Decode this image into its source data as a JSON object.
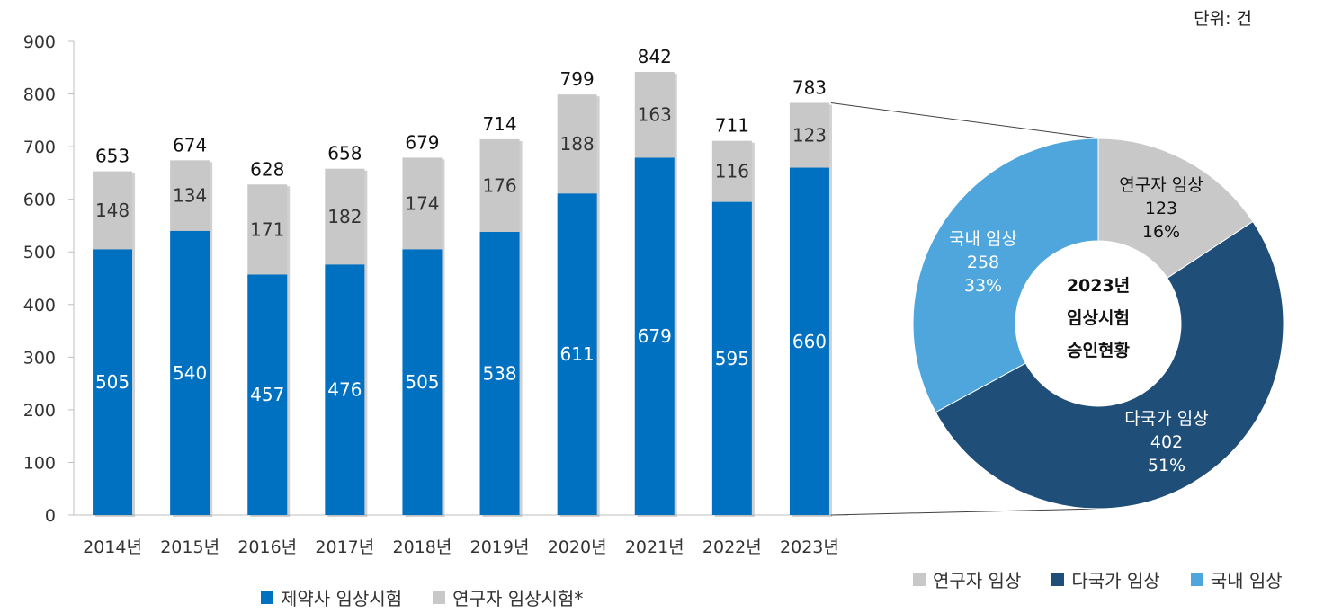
{
  "unit_label": "단위: 건",
  "bar_legend": [
    {
      "name": "제약사 임상시험",
      "color": "#0070c0"
    },
    {
      "name": "연구자 임상시험*",
      "color": "#c8c8c8"
    }
  ],
  "pie_legend": [
    {
      "name": "연구자 임상",
      "color": "#c8c8c8"
    },
    {
      "name": "다국가 임상",
      "color": "#1f4e79"
    },
    {
      "name": "국내 임상",
      "color": "#4ea6dc"
    }
  ],
  "pie_center": [
    "2023년",
    "임상시험",
    "승인현황"
  ],
  "chart_data": [
    {
      "type": "bar",
      "stacked": true,
      "categories": [
        "2014년",
        "2015년",
        "2016년",
        "2017년",
        "2018년",
        "2019년",
        "2020년",
        "2021년",
        "2022년",
        "2023년"
      ],
      "series": [
        {
          "name": "제약사 임상시험",
          "values": [
            505,
            540,
            457,
            476,
            505,
            538,
            611,
            679,
            595,
            660
          ],
          "color": "#0070c0"
        },
        {
          "name": "연구자 임상시험*",
          "values": [
            148,
            134,
            171,
            182,
            174,
            176,
            188,
            163,
            116,
            123
          ],
          "color": "#c8c8c8"
        }
      ],
      "totals": [
        653,
        674,
        628,
        658,
        679,
        714,
        799,
        842,
        711,
        783
      ],
      "ylim": [
        0,
        900
      ],
      "yticks": [
        0,
        100,
        200,
        300,
        400,
        500,
        600,
        700,
        800,
        900
      ],
      "legend_position": "bottom"
    },
    {
      "type": "pie",
      "donut": true,
      "slices": [
        {
          "label": "연구자 임상",
          "value": 123,
          "percent": "16%",
          "color": "#c8c8c8"
        },
        {
          "label": "다국가 임상",
          "value": 402,
          "percent": "51%",
          "color": "#1f4e79"
        },
        {
          "label": "국내 임상",
          "value": 258,
          "percent": "33%",
          "color": "#4ea6dc"
        }
      ],
      "legend_position": "bottom-right"
    }
  ]
}
